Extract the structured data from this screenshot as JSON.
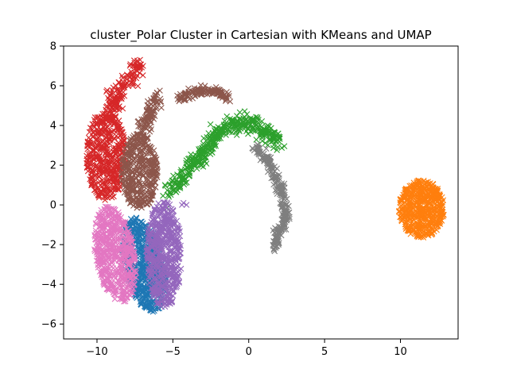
{
  "chart_data": {
    "type": "scatter",
    "title": "cluster_Polar Cluster in Cartesian with KMeans and UMAP",
    "xlabel": "",
    "ylabel": "",
    "xlim": [
      -12.2,
      13.8
    ],
    "ylim": [
      -6.75,
      8.0
    ],
    "xticks": [
      -10,
      -5,
      0,
      5,
      10
    ],
    "xtick_labels": [
      "−10",
      "−5",
      "0",
      "5",
      "10"
    ],
    "yticks": [
      -6,
      -4,
      -2,
      0,
      2,
      4,
      6,
      8
    ],
    "ytick_labels": [
      "−6",
      "−4",
      "−2",
      "0",
      "2",
      "4",
      "6",
      "8"
    ],
    "grid": false,
    "legend": "none",
    "marker": "x",
    "series": [
      {
        "color": "#1f77b4",
        "kind": "blob",
        "center": [
          -6.9,
          -3.0
        ],
        "radii": [
          1.3,
          2.5
        ],
        "rotation_deg": 20,
        "count": 650
      },
      {
        "color": "#ff7f0e",
        "kind": "blob",
        "center": [
          11.4,
          -0.2
        ],
        "radii": [
          1.5,
          1.45
        ],
        "rotation_deg": 0,
        "count": 550
      },
      {
        "color": "#2ca02c",
        "kind": "path",
        "points": [
          [
            -5.3,
            0.6
          ],
          [
            -4.5,
            1.3
          ],
          [
            -3.3,
            2.3
          ],
          [
            -2.2,
            3.5
          ],
          [
            -1.2,
            4.1
          ],
          [
            0.1,
            4.2
          ],
          [
            1.0,
            3.7
          ],
          [
            2.0,
            3.2
          ]
        ],
        "width": 0.45,
        "count": 430
      },
      {
        "color": "#d62728",
        "kind": "blob",
        "center": [
          -9.4,
          2.5
        ],
        "radii": [
          1.3,
          2.3
        ],
        "rotation_deg": 0,
        "count": 450
      },
      {
        "color": "#d62728",
        "kind": "path",
        "points": [
          [
            -9.3,
            4.3
          ],
          [
            -8.8,
            5.3
          ],
          [
            -8.3,
            5.9
          ],
          [
            -7.6,
            6.6
          ],
          [
            -7.2,
            7.1
          ]
        ],
        "width": 0.45,
        "count": 160
      },
      {
        "color": "#9467bd",
        "kind": "blob",
        "center": [
          -5.6,
          -2.5
        ],
        "radii": [
          1.2,
          2.7
        ],
        "rotation_deg": 0,
        "count": 580
      },
      {
        "color": "#9467bd",
        "kind": "points",
        "points": [
          [
            -4.4,
            0.0
          ],
          [
            -4.1,
            0.0
          ],
          [
            -4.3,
            0.1
          ]
        ]
      },
      {
        "color": "#8c564b",
        "kind": "blob",
        "center": [
          -7.2,
          1.7
        ],
        "radii": [
          1.2,
          1.9
        ],
        "rotation_deg": 0,
        "count": 420
      },
      {
        "color": "#8c564b",
        "kind": "path",
        "points": [
          [
            -6.9,
            3.7
          ],
          [
            -6.4,
            5.0
          ],
          [
            -6.0,
            5.5
          ]
        ],
        "width": 0.4,
        "count": 90
      },
      {
        "color": "#8c564b",
        "kind": "path",
        "points": [
          [
            -4.6,
            5.3
          ],
          [
            -3.9,
            5.6
          ],
          [
            -2.9,
            5.8
          ],
          [
            -2.0,
            5.65
          ],
          [
            -1.4,
            5.4
          ]
        ],
        "width": 0.25,
        "count": 130
      },
      {
        "color": "#e377c2",
        "kind": "blob",
        "center": [
          -8.8,
          -2.5
        ],
        "radii": [
          1.3,
          2.5
        ],
        "rotation_deg": 15,
        "count": 600
      },
      {
        "color": "#7f7f7f",
        "kind": "path",
        "points": [
          [
            0.4,
            2.9
          ],
          [
            1.2,
            2.4
          ],
          [
            1.8,
            1.4
          ],
          [
            2.2,
            0.5
          ],
          [
            2.5,
            -0.5
          ],
          [
            2.0,
            -1.3
          ],
          [
            1.6,
            -2.3
          ]
        ],
        "width": 0.28,
        "count": 260
      }
    ]
  }
}
